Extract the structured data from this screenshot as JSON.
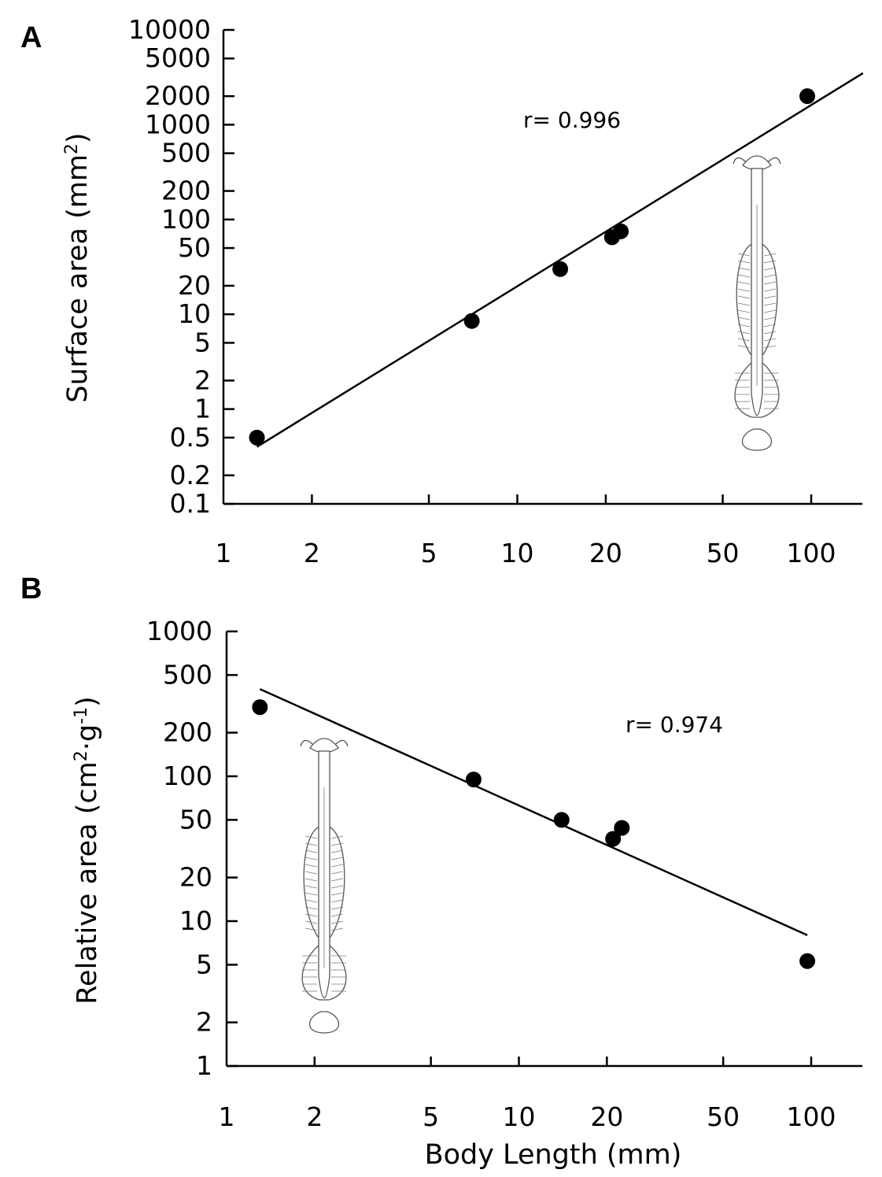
{
  "chart_data": [
    {
      "type": "scatter",
      "panel": "A",
      "xlabel": "",
      "ylabel": "Surface area (mm²)",
      "ylabel_main": "Surface area (mm",
      "ylabel_sup": "2",
      "ylabel_end": ")",
      "x_scale": "log",
      "y_scale": "log",
      "xlim": [
        1,
        150
      ],
      "ylim": [
        0.1,
        10000
      ],
      "x_ticks": [
        1,
        2,
        5,
        10,
        20,
        50,
        100
      ],
      "x_tick_labels": [
        "1",
        "2",
        "5",
        "10",
        "20",
        "50",
        "100"
      ],
      "y_ticks": [
        10000,
        5000,
        2000,
        1000,
        500,
        200,
        100,
        50,
        20,
        10,
        5,
        2,
        1,
        0.5,
        0.2,
        0.1
      ],
      "y_tick_labels": [
        "10000",
        "5000",
        "2000",
        "1000",
        "500",
        "200",
        "100",
        "50",
        "20",
        "10",
        "5",
        "2",
        "1",
        "0.5",
        "0.2",
        "0.1"
      ],
      "points": [
        {
          "x": 1.3,
          "y": 0.5
        },
        {
          "x": 7.0,
          "y": 8.5
        },
        {
          "x": 14.0,
          "y": 30
        },
        {
          "x": 21.0,
          "y": 65
        },
        {
          "x": 22.5,
          "y": 75
        },
        {
          "x": 97.0,
          "y": 2000
        }
      ],
      "fit_line": {
        "x": [
          1.3,
          150
        ],
        "y": [
          0.4,
          3500
        ]
      },
      "annotation": "r= 0.996"
    },
    {
      "type": "scatter",
      "panel": "B",
      "xlabel": "Body Length (mm)",
      "ylabel": "Relative area (cm²·g⁻¹)",
      "ylabel_main": "Relative area (cm",
      "ylabel_sup1": "2",
      "ylabel_mid": "·g",
      "ylabel_sup2": "-1",
      "ylabel_end": ")",
      "x_scale": "log",
      "y_scale": "log",
      "xlim": [
        1,
        150
      ],
      "ylim": [
        1,
        1000
      ],
      "x_ticks": [
        1,
        2,
        5,
        10,
        20,
        50,
        100
      ],
      "x_tick_labels": [
        "1",
        "2",
        "5",
        "10",
        "20",
        "50",
        "100"
      ],
      "y_ticks": [
        1000,
        500,
        200,
        100,
        50,
        20,
        10,
        5,
        2,
        1
      ],
      "y_tick_labels": [
        "1000",
        "500",
        "200",
        "100",
        "50",
        "20",
        "10",
        "5",
        "2",
        "1"
      ],
      "points": [
        {
          "x": 1.3,
          "y": 300
        },
        {
          "x": 7.0,
          "y": 95
        },
        {
          "x": 14.0,
          "y": 50
        },
        {
          "x": 21.0,
          "y": 37
        },
        {
          "x": 22.5,
          "y": 44
        },
        {
          "x": 97.0,
          "y": 5.3
        }
      ],
      "fit_line": {
        "x": [
          1.3,
          97
        ],
        "y": [
          400,
          8
        ]
      },
      "annotation": "r= 0.974"
    }
  ]
}
